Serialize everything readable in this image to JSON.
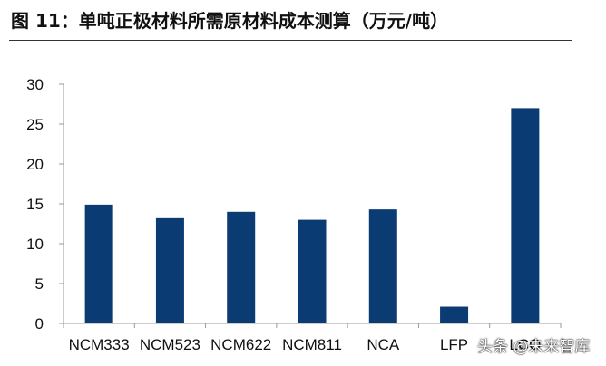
{
  "title": "图 11：单吨正极材料所需原材料成本测算（万元/吨）",
  "watermark": "头条 @未来智库",
  "colors": {
    "bar": "#0a3b73",
    "axis": "#999999",
    "title_rule": "#333333"
  },
  "chart_data": {
    "type": "bar",
    "title": "图 11：单吨正极材料所需原材料成本测算（万元/吨）",
    "categories": [
      "NCM333",
      "NCM523",
      "NCM622",
      "NCM811",
      "NCA",
      "LFP",
      "LCO"
    ],
    "values": [
      14.9,
      13.2,
      14.0,
      13.0,
      14.3,
      2.1,
      27.0
    ],
    "yticks": [
      0,
      5,
      10,
      15,
      20,
      25,
      30
    ],
    "ylim": [
      0,
      30
    ],
    "xlabel": "",
    "ylabel": "",
    "grid": false,
    "legend": "none"
  }
}
